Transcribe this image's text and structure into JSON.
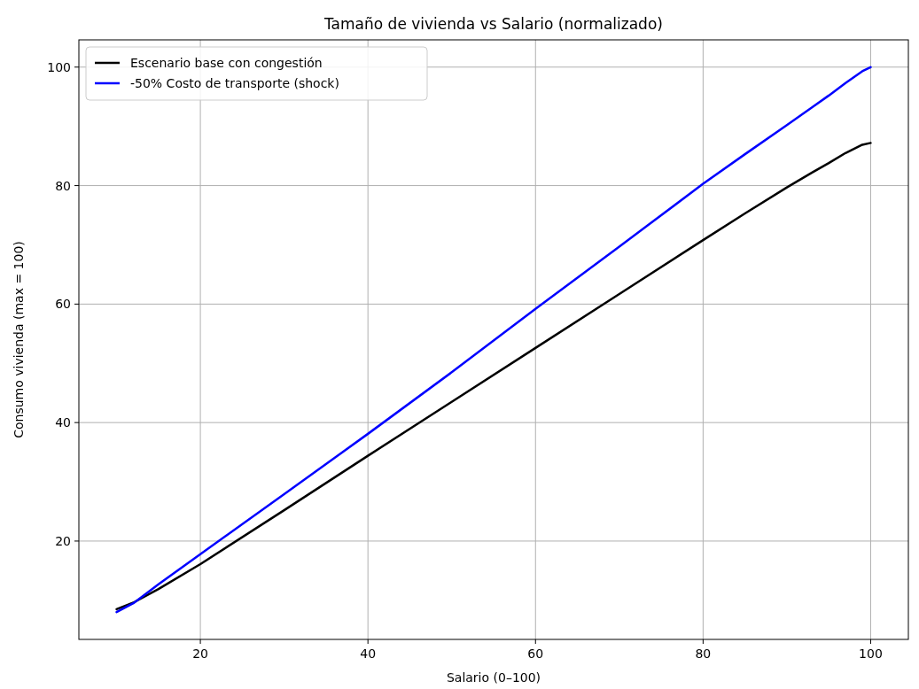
{
  "chart_data": {
    "type": "line",
    "title": "Tamaño de vivienda vs Salario (normalizado)",
    "xlabel": "Salario (0–100)",
    "ylabel": "Consumo vivienda (max = 100)",
    "xlim": [
      5.5,
      104.5
    ],
    "ylim": [
      3.4,
      104.6
    ],
    "xticks": [
      20,
      40,
      60,
      80,
      100
    ],
    "yticks": [
      20,
      40,
      60,
      80,
      100
    ],
    "grid": true,
    "legend": "top left",
    "line_style": "solid",
    "marker": "none",
    "series": [
      {
        "name": "Escenario base con congestión",
        "color": "#000000",
        "x": [
          10,
          12,
          15,
          20,
          30,
          40,
          50,
          60,
          70,
          80,
          85,
          90,
          93,
          95,
          97,
          99,
          100
        ],
        "values": [
          8.5,
          9.6,
          11.9,
          16.1,
          25.2,
          34.4,
          43.5,
          52.6,
          61.7,
          70.8,
          75.3,
          79.7,
          82.2,
          83.8,
          85.5,
          86.9,
          87.2
        ]
      },
      {
        "name": "-50% Costo de transporte (shock)",
        "color": "#0000ff",
        "x": [
          10,
          12,
          15,
          20,
          30,
          40,
          50,
          60,
          70,
          80,
          85,
          90,
          93,
          95,
          97,
          99,
          100
        ],
        "values": [
          8.0,
          9.5,
          12.7,
          17.8,
          27.9,
          38.1,
          48.5,
          59.2,
          69.7,
          80.3,
          85.3,
          90.2,
          93.2,
          95.2,
          97.3,
          99.3,
          100
        ]
      }
    ]
  }
}
